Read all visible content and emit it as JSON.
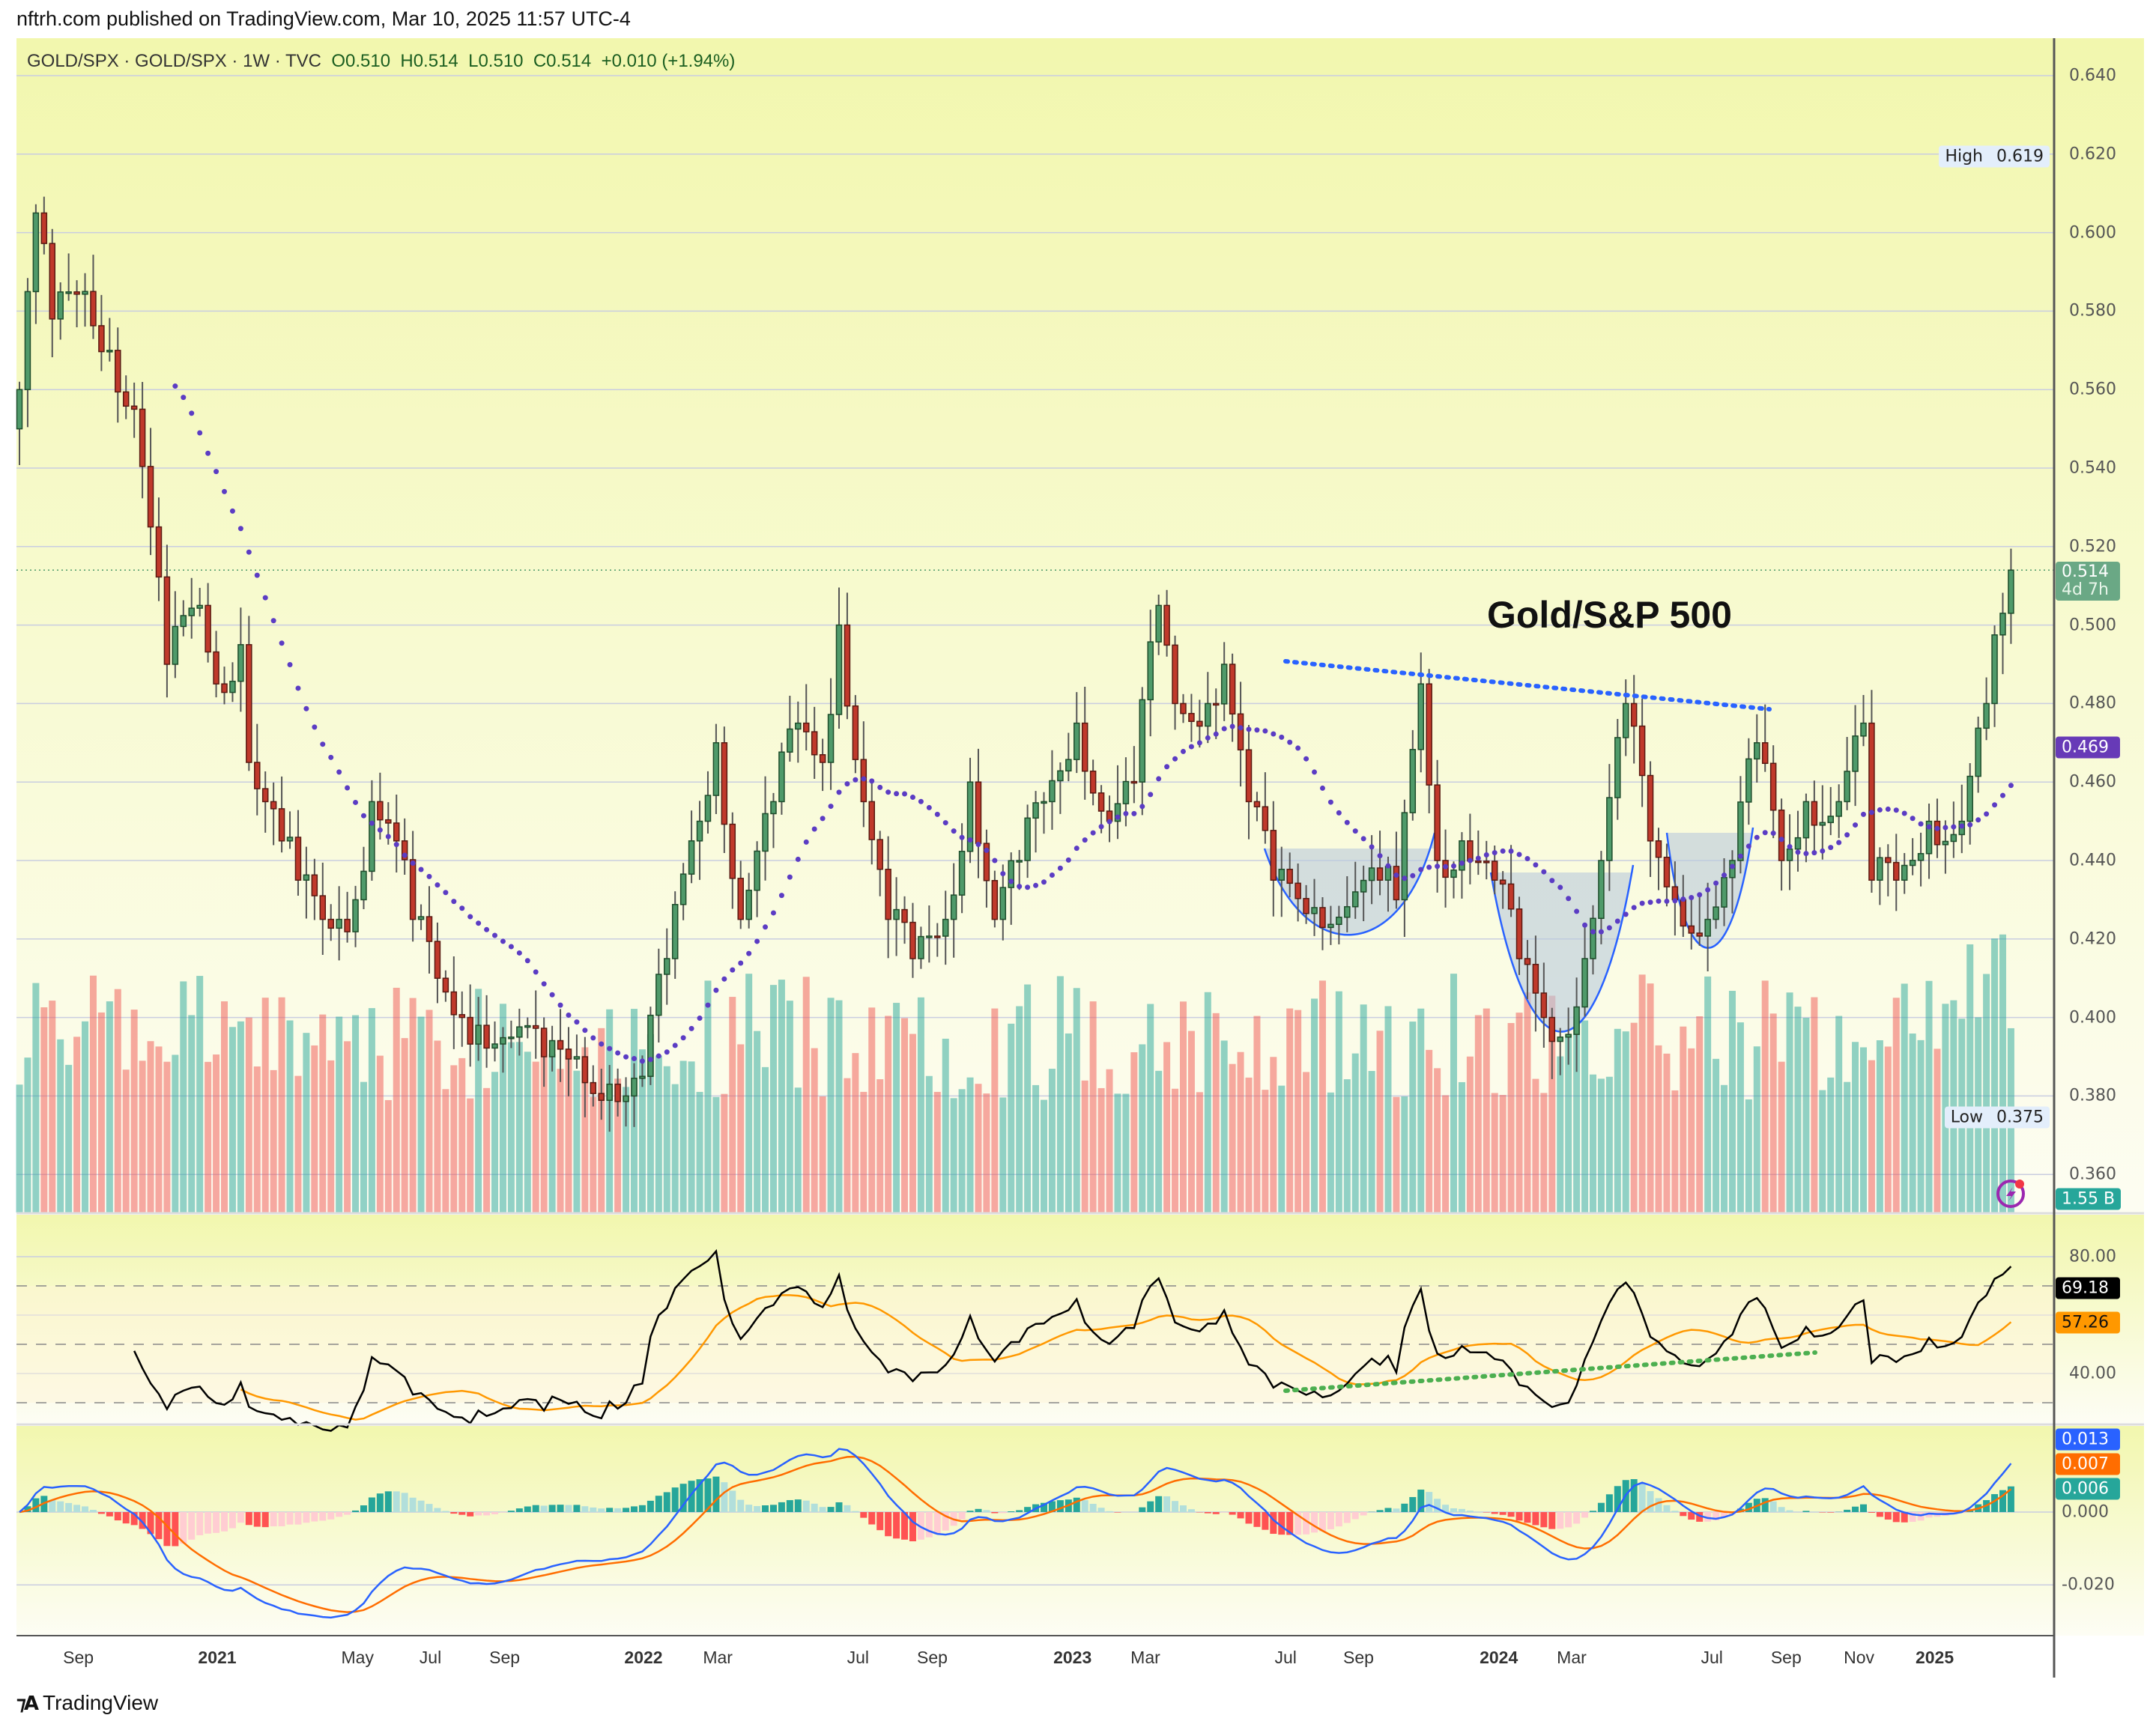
{
  "header": {
    "text": "nftrh.com published on TradingView.com, Mar 10, 2025 11:57 UTC-4"
  },
  "legend": {
    "symbol": "GOLD/SPX · GOLD/SPX · 1W · TVC",
    "ohlc": "O0.510  H0.514  L0.510  C0.514  +0.010 (+1.94%)"
  },
  "annotation": {
    "title": "Gold/S&P 500"
  },
  "price_axis": {
    "ticks": [
      "0.640",
      "0.620",
      "0.600",
      "0.580",
      "0.560",
      "0.540",
      "0.520",
      "0.500",
      "0.480",
      "0.460",
      "0.440",
      "0.420",
      "0.400",
      "0.380",
      "0.360"
    ]
  },
  "rsi_axis": {
    "ticks": [
      "80.00",
      "40.00"
    ]
  },
  "macd_axis": {
    "ticks": [
      "0.000",
      "-0.020"
    ]
  },
  "chips": {
    "last_price": "0.514",
    "countdown": "4d 7h",
    "ma": "0.469",
    "high_label": "High",
    "high": "0.619",
    "low_label": "Low",
    "low": "0.375",
    "volume": "1.55 B",
    "rsi": "69.18",
    "rsi_ma": "57.26",
    "macd": "0.013",
    "signal": "0.007",
    "hist": "0.006"
  },
  "time_axis": {
    "labels": [
      "Sep",
      "2021",
      "May",
      "Jul",
      "Sep",
      "2022",
      "Mar",
      "Jul",
      "Sep",
      "2023",
      "Mar",
      "Jul",
      "Sep",
      "2024",
      "Mar",
      "Jul",
      "Sep",
      "Nov",
      "2025"
    ]
  },
  "footer": {
    "brand": "TradingView"
  },
  "colors": {
    "up": "#26a69a",
    "down": "#ef5350",
    "up_body": "#4f9a6a",
    "down_body": "#c0392b",
    "ma_dots": "#5b3cc4",
    "macd": "#2962ff",
    "signal": "#ff6d00",
    "trend_blue": "#2962ff",
    "trend_green": "#4caf50"
  },
  "chart_data": {
    "type": "candlestick",
    "symbol": "GOLD/SPX",
    "interval": "1W",
    "ylim": [
      0.355,
      0.645
    ],
    "high": 0.619,
    "low": 0.375,
    "weekly_close_anchors": [
      [
        "2020-07-17",
        0.56
      ],
      [
        "2020-07-31",
        0.605
      ],
      [
        "2020-08-14",
        0.578
      ],
      [
        "2020-09-11",
        0.585
      ],
      [
        "2020-10-02",
        0.57
      ],
      [
        "2020-10-23",
        0.555
      ],
      [
        "2020-11-06",
        0.525
      ],
      [
        "2020-11-20",
        0.49
      ],
      [
        "2020-12-18",
        0.505
      ],
      [
        "2021-01-01",
        0.485
      ],
      [
        "2021-01-22",
        0.495
      ],
      [
        "2021-01-29",
        0.465
      ],
      [
        "2021-02-12",
        0.455
      ],
      [
        "2021-02-26",
        0.445
      ],
      [
        "2021-03-12",
        0.435
      ],
      [
        "2021-04-02",
        0.425
      ],
      [
        "2021-04-16",
        0.425
      ],
      [
        "2021-04-30",
        0.43
      ],
      [
        "2021-05-14",
        0.455
      ],
      [
        "2021-06-04",
        0.445
      ],
      [
        "2021-06-18",
        0.425
      ],
      [
        "2021-07-09",
        0.41
      ],
      [
        "2021-07-30",
        0.4
      ],
      [
        "2021-08-13",
        0.398
      ],
      [
        "2021-09-10",
        0.395
      ],
      [
        "2021-10-08",
        0.39
      ],
      [
        "2021-11-05",
        0.39
      ],
      [
        "2021-12-03",
        0.383
      ],
      [
        "2021-12-17",
        0.38
      ],
      [
        "2021-12-31",
        0.385
      ],
      [
        "2022-01-21",
        0.415
      ],
      [
        "2022-02-11",
        0.445
      ],
      [
        "2022-03-04",
        0.47
      ],
      [
        "2022-03-25",
        0.425
      ],
      [
        "2022-04-22",
        0.455
      ],
      [
        "2022-05-13",
        0.475
      ],
      [
        "2022-06-03",
        0.465
      ],
      [
        "2022-06-17",
        0.5
      ],
      [
        "2022-07-08",
        0.455
      ],
      [
        "2022-07-29",
        0.425
      ],
      [
        "2022-08-19",
        0.415
      ],
      [
        "2022-09-16",
        0.425
      ],
      [
        "2022-10-07",
        0.46
      ],
      [
        "2022-10-28",
        0.425
      ],
      [
        "2022-11-18",
        0.44
      ],
      [
        "2022-12-09",
        0.455
      ],
      [
        "2023-01-06",
        0.475
      ],
      [
        "2023-02-03",
        0.45
      ],
      [
        "2023-02-24",
        0.46
      ],
      [
        "2023-03-17",
        0.505
      ],
      [
        "2023-03-31",
        0.48
      ],
      [
        "2023-04-28",
        0.48
      ],
      [
        "2023-05-12",
        0.49
      ],
      [
        "2023-06-02",
        0.455
      ],
      [
        "2023-06-23",
        0.435
      ],
      [
        "2023-07-28",
        0.428
      ],
      [
        "2023-09-01",
        0.432
      ],
      [
        "2023-09-22",
        0.435
      ],
      [
        "2023-10-06",
        0.43
      ],
      [
        "2023-10-27",
        0.485
      ],
      [
        "2023-11-10",
        0.44
      ],
      [
        "2023-12-01",
        0.445
      ],
      [
        "2023-12-29",
        0.435
      ],
      [
        "2024-01-19",
        0.415
      ],
      [
        "2024-02-09",
        0.4
      ],
      [
        "2024-02-23",
        0.395
      ],
      [
        "2024-03-15",
        0.415
      ],
      [
        "2024-03-29",
        0.44
      ],
      [
        "2024-04-19",
        0.48
      ],
      [
        "2024-05-10",
        0.445
      ],
      [
        "2024-05-31",
        0.43
      ],
      [
        "2024-06-28",
        0.425
      ],
      [
        "2024-07-19",
        0.44
      ],
      [
        "2024-08-09",
        0.47
      ],
      [
        "2024-08-30",
        0.44
      ],
      [
        "2024-09-20",
        0.455
      ],
      [
        "2024-10-18",
        0.455
      ],
      [
        "2024-11-08",
        0.475
      ],
      [
        "2024-11-15",
        0.435
      ],
      [
        "2024-12-06",
        0.435
      ],
      [
        "2025-01-03",
        0.45
      ],
      [
        "2025-01-31",
        0.45
      ],
      [
        "2025-02-21",
        0.48
      ],
      [
        "2025-03-07",
        0.503
      ],
      [
        "2025-03-14",
        0.514
      ]
    ]
  }
}
